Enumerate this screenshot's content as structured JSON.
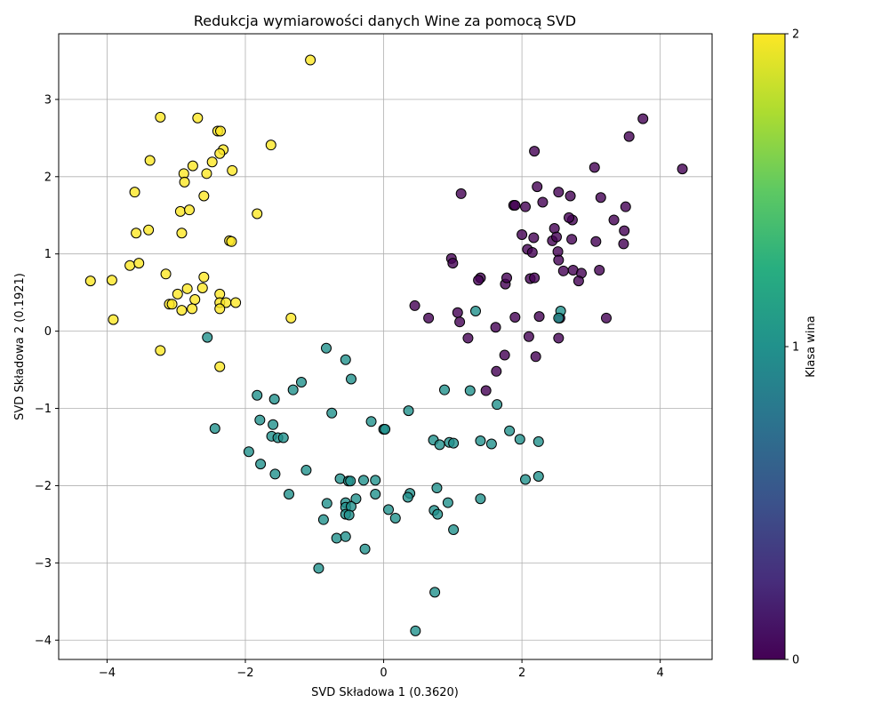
{
  "chart_data": {
    "type": "scatter",
    "title": "Redukcja wymiarowości danych Wine za pomocą SVD",
    "xlabel": "SVD Składowa 1 (0.3620)",
    "ylabel": "SVD Składowa 2 (0.1921)",
    "xlim": [
      -4.7,
      4.75
    ],
    "ylim": [
      -4.25,
      3.85
    ],
    "xticks": [
      -4,
      -2,
      0,
      2,
      4
    ],
    "yticks": [
      -4,
      -3,
      -2,
      -1,
      0,
      1,
      2,
      3
    ],
    "xtick_labels": [
      "−4",
      "−2",
      "0",
      "2",
      "4"
    ],
    "ytick_labels": [
      "−4",
      "−3",
      "−2",
      "−1",
      "0",
      "1",
      "2",
      "3"
    ],
    "grid": true,
    "colormap": "viridis",
    "colorbar": {
      "label": "Klasa wina",
      "range": [
        0,
        2
      ],
      "ticks": [
        0,
        1,
        2
      ],
      "tick_labels": [
        "0",
        "1",
        "2"
      ]
    },
    "class_colors": {
      "0": "#440154",
      "1": "#21918c",
      "2": "#fde725"
    },
    "series": [
      {
        "class": 0,
        "points": [
          [
            3.75,
            2.75
          ],
          [
            3.55,
            2.52
          ],
          [
            4.32,
            2.1
          ],
          [
            3.05,
            2.12
          ],
          [
            2.18,
            2.33
          ],
          [
            2.22,
            1.87
          ],
          [
            2.53,
            1.8
          ],
          [
            2.7,
            1.75
          ],
          [
            3.14,
            1.73
          ],
          [
            1.12,
            1.78
          ],
          [
            1.88,
            1.63
          ],
          [
            1.9,
            1.63
          ],
          [
            2.05,
            1.61
          ],
          [
            2.3,
            1.67
          ],
          [
            3.5,
            1.61
          ],
          [
            2.47,
            1.33
          ],
          [
            2.73,
            1.44
          ],
          [
            3.33,
            1.44
          ],
          [
            2.68,
            1.47
          ],
          [
            2.0,
            1.25
          ],
          [
            2.17,
            1.21
          ],
          [
            2.44,
            1.17
          ],
          [
            2.5,
            1.22
          ],
          [
            2.72,
            1.19
          ],
          [
            3.07,
            1.16
          ],
          [
            3.47,
            1.13
          ],
          [
            3.48,
            1.3
          ],
          [
            2.08,
            1.06
          ],
          [
            2.15,
            1.02
          ],
          [
            2.52,
            1.03
          ],
          [
            0.98,
            0.94
          ],
          [
            1.0,
            0.88
          ],
          [
            2.53,
            0.92
          ],
          [
            2.74,
            0.79
          ],
          [
            2.6,
            0.78
          ],
          [
            2.86,
            0.75
          ],
          [
            3.12,
            0.79
          ],
          [
            2.82,
            0.65
          ],
          [
            1.4,
            0.69
          ],
          [
            1.37,
            0.66
          ],
          [
            1.76,
            0.61
          ],
          [
            1.78,
            0.69
          ],
          [
            2.12,
            0.68
          ],
          [
            2.18,
            0.69
          ],
          [
            0.45,
            0.33
          ],
          [
            0.65,
            0.17
          ],
          [
            1.07,
            0.24
          ],
          [
            1.1,
            0.12
          ],
          [
            1.9,
            0.18
          ],
          [
            2.25,
            0.19
          ],
          [
            3.22,
            0.17
          ],
          [
            2.55,
            0.17
          ],
          [
            1.62,
            0.05
          ],
          [
            1.22,
            -0.09
          ],
          [
            2.1,
            -0.07
          ],
          [
            2.53,
            -0.09
          ],
          [
            1.75,
            -0.31
          ],
          [
            2.2,
            -0.33
          ],
          [
            1.63,
            -0.52
          ],
          [
            1.48,
            -0.77
          ]
        ]
      },
      {
        "class": 1,
        "points": [
          [
            1.33,
            0.26
          ],
          [
            2.56,
            0.26
          ],
          [
            2.53,
            0.17
          ],
          [
            -2.55,
            -0.08
          ],
          [
            -0.83,
            -0.22
          ],
          [
            -0.55,
            -0.37
          ],
          [
            -0.47,
            -0.62
          ],
          [
            -1.19,
            -0.66
          ],
          [
            -1.31,
            -0.76
          ],
          [
            -1.83,
            -0.83
          ],
          [
            -1.58,
            -0.88
          ],
          [
            0.88,
            -0.76
          ],
          [
            1.25,
            -0.77
          ],
          [
            0.36,
            -1.03
          ],
          [
            1.64,
            -0.95
          ],
          [
            -0.75,
            -1.06
          ],
          [
            -1.79,
            -1.15
          ],
          [
            -1.6,
            -1.21
          ],
          [
            -0.18,
            -1.17
          ],
          [
            0.0,
            -1.27
          ],
          [
            0.02,
            -1.27
          ],
          [
            -2.44,
            -1.26
          ],
          [
            1.82,
            -1.29
          ],
          [
            -1.62,
            -1.36
          ],
          [
            -1.53,
            -1.38
          ],
          [
            -1.45,
            -1.38
          ],
          [
            0.72,
            -1.41
          ],
          [
            0.95,
            -1.44
          ],
          [
            1.01,
            -1.45
          ],
          [
            1.4,
            -1.42
          ],
          [
            1.56,
            -1.46
          ],
          [
            1.97,
            -1.4
          ],
          [
            2.24,
            -1.43
          ],
          [
            0.81,
            -1.47
          ],
          [
            -1.95,
            -1.56
          ],
          [
            -1.78,
            -1.72
          ],
          [
            -1.12,
            -1.8
          ],
          [
            -1.57,
            -1.85
          ],
          [
            -0.63,
            -1.91
          ],
          [
            -0.51,
            -1.94
          ],
          [
            -0.48,
            -1.94
          ],
          [
            -0.29,
            -1.93
          ],
          [
            -0.12,
            -1.93
          ],
          [
            2.05,
            -1.92
          ],
          [
            2.24,
            -1.88
          ],
          [
            0.77,
            -2.03
          ],
          [
            -1.37,
            -2.11
          ],
          [
            -0.12,
            -2.11
          ],
          [
            0.38,
            -2.1
          ],
          [
            0.35,
            -2.15
          ],
          [
            -0.4,
            -2.17
          ],
          [
            -0.55,
            -2.22
          ],
          [
            -0.82,
            -2.23
          ],
          [
            -0.55,
            -2.28
          ],
          [
            -0.47,
            -2.27
          ],
          [
            0.93,
            -2.22
          ],
          [
            1.4,
            -2.17
          ],
          [
            -0.55,
            -2.37
          ],
          [
            -0.5,
            -2.38
          ],
          [
            0.07,
            -2.31
          ],
          [
            0.73,
            -2.32
          ],
          [
            0.78,
            -2.37
          ],
          [
            0.17,
            -2.42
          ],
          [
            -0.87,
            -2.44
          ],
          [
            1.01,
            -2.57
          ],
          [
            -0.68,
            -2.68
          ],
          [
            -0.55,
            -2.66
          ],
          [
            -0.27,
            -2.82
          ],
          [
            -0.94,
            -3.07
          ],
          [
            0.74,
            -3.38
          ],
          [
            0.46,
            -3.88
          ]
        ]
      },
      {
        "class": 2,
        "points": [
          [
            -1.06,
            3.51
          ],
          [
            -3.23,
            2.77
          ],
          [
            -2.69,
            2.76
          ],
          [
            -2.4,
            2.59
          ],
          [
            -2.36,
            2.59
          ],
          [
            -1.63,
            2.41
          ],
          [
            -2.32,
            2.35
          ],
          [
            -2.37,
            2.3
          ],
          [
            -3.38,
            2.21
          ],
          [
            -2.48,
            2.19
          ],
          [
            -2.76,
            2.14
          ],
          [
            -2.89,
            2.04
          ],
          [
            -2.56,
            2.04
          ],
          [
            -2.19,
            2.08
          ],
          [
            -2.88,
            1.93
          ],
          [
            -3.6,
            1.8
          ],
          [
            -2.6,
            1.75
          ],
          [
            -2.94,
            1.55
          ],
          [
            -2.81,
            1.57
          ],
          [
            -1.83,
            1.52
          ],
          [
            -3.58,
            1.27
          ],
          [
            -3.4,
            1.31
          ],
          [
            -2.92,
            1.27
          ],
          [
            -2.23,
            1.17
          ],
          [
            -2.2,
            1.16
          ],
          [
            -3.67,
            0.85
          ],
          [
            -3.54,
            0.88
          ],
          [
            -4.24,
            0.65
          ],
          [
            -3.93,
            0.66
          ],
          [
            -3.15,
            0.74
          ],
          [
            -2.6,
            0.7
          ],
          [
            -2.84,
            0.55
          ],
          [
            -2.62,
            0.56
          ],
          [
            -2.98,
            0.48
          ],
          [
            -2.37,
            0.48
          ],
          [
            -3.1,
            0.35
          ],
          [
            -3.06,
            0.35
          ],
          [
            -2.37,
            0.37
          ],
          [
            -2.28,
            0.37
          ],
          [
            -2.14,
            0.37
          ],
          [
            -2.73,
            0.41
          ],
          [
            -2.92,
            0.27
          ],
          [
            -2.77,
            0.29
          ],
          [
            -2.37,
            0.29
          ],
          [
            -1.34,
            0.17
          ],
          [
            -3.91,
            0.15
          ],
          [
            -3.23,
            -0.25
          ],
          [
            -2.37,
            -0.46
          ]
        ]
      }
    ]
  }
}
